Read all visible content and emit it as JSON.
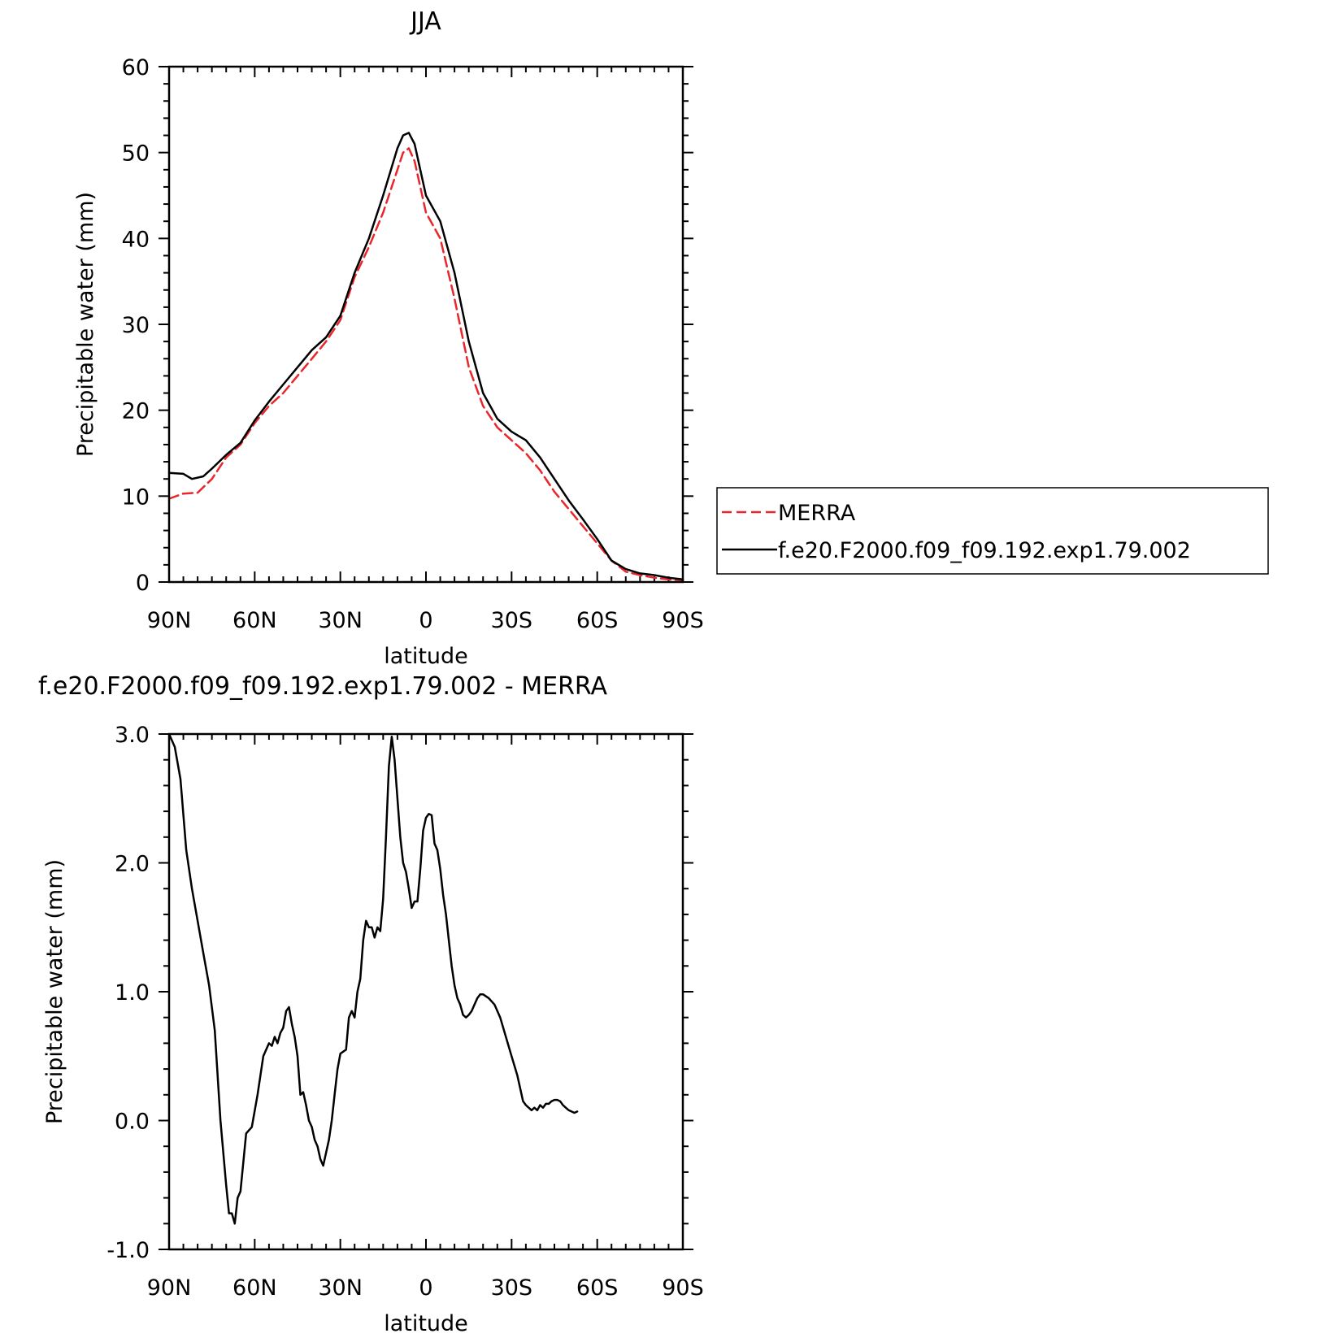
{
  "chart_data": [
    {
      "type": "line",
      "title": "JJA",
      "xlabel": "latitude",
      "ylabel": "Precipitable water (mm)",
      "xlim": [
        90,
        -90
      ],
      "ylim": [
        0,
        60
      ],
      "x_ticks": [
        90,
        60,
        30,
        0,
        -30,
        -60,
        -90
      ],
      "x_tick_labels": [
        "90N",
        "60N",
        "30N",
        "0",
        "30S",
        "60S",
        "90S"
      ],
      "y_ticks": [
        0,
        10,
        20,
        30,
        40,
        50,
        60
      ],
      "y_tick_labels": [
        "0",
        "10",
        "20",
        "30",
        "40",
        "50",
        "60"
      ],
      "grid": false,
      "legend_position": "right",
      "series": [
        {
          "name": "MERRA",
          "color": "#e8262b",
          "dash": "dashed",
          "points": [
            [
              90,
              9.7
            ],
            [
              85,
              10.3
            ],
            [
              80,
              10.4
            ],
            [
              75,
              12
            ],
            [
              70,
              14.5
            ],
            [
              65,
              16
            ],
            [
              60,
              18.5
            ],
            [
              55,
              20.5
            ],
            [
              50,
              22
            ],
            [
              45,
              24
            ],
            [
              40,
              26
            ],
            [
              35,
              28
            ],
            [
              30,
              30.5
            ],
            [
              25,
              35.5
            ],
            [
              20,
              39
            ],
            [
              15,
              43
            ],
            [
              10,
              48
            ],
            [
              8,
              50
            ],
            [
              6,
              50.5
            ],
            [
              4,
              49
            ],
            [
              2,
              46
            ],
            [
              0,
              43
            ],
            [
              -5,
              40
            ],
            [
              -10,
              33
            ],
            [
              -15,
              25
            ],
            [
              -20,
              20.5
            ],
            [
              -25,
              18
            ],
            [
              -30,
              16.5
            ],
            [
              -35,
              15
            ],
            [
              -40,
              13
            ],
            [
              -45,
              10.5
            ],
            [
              -50,
              8.5
            ],
            [
              -55,
              6.5
            ],
            [
              -60,
              4.5
            ],
            [
              -65,
              2.5
            ],
            [
              -70,
              1.2
            ],
            [
              -75,
              0.8
            ],
            [
              -80,
              0.5
            ],
            [
              -85,
              0.3
            ],
            [
              -90,
              0.2
            ]
          ]
        },
        {
          "name": "f.e20.F2000.f09_f09.192.exp1.79.002",
          "color": "#000000",
          "dash": "solid",
          "points": [
            [
              90,
              12.7
            ],
            [
              85,
              12.6
            ],
            [
              82,
              12
            ],
            [
              78,
              12.3
            ],
            [
              75,
              13.2
            ],
            [
              70,
              14.8
            ],
            [
              65,
              16.2
            ],
            [
              60,
              18.8
            ],
            [
              55,
              21
            ],
            [
              50,
              23
            ],
            [
              45,
              25
            ],
            [
              40,
              27
            ],
            [
              35,
              28.5
            ],
            [
              30,
              31
            ],
            [
              25,
              36
            ],
            [
              20,
              40
            ],
            [
              15,
              45
            ],
            [
              10,
              50.5
            ],
            [
              8,
              52
            ],
            [
              6,
              52.3
            ],
            [
              4,
              51
            ],
            [
              2,
              48
            ],
            [
              0,
              45
            ],
            [
              -5,
              42
            ],
            [
              -10,
              36
            ],
            [
              -15,
              28
            ],
            [
              -20,
              22
            ],
            [
              -25,
              19
            ],
            [
              -30,
              17.5
            ],
            [
              -35,
              16.5
            ],
            [
              -40,
              14.5
            ],
            [
              -45,
              12
            ],
            [
              -50,
              9.5
            ],
            [
              -55,
              7.3
            ],
            [
              -60,
              5
            ],
            [
              -65,
              2.5
            ],
            [
              -70,
              1.5
            ],
            [
              -75,
              1
            ],
            [
              -80,
              0.8
            ],
            [
              -85,
              0.5
            ],
            [
              -90,
              0.3
            ]
          ]
        }
      ]
    },
    {
      "type": "line",
      "title": "f.e20.F2000.f09_f09.192.exp1.79.002 - MERRA",
      "xlabel": "latitude",
      "ylabel": "Precipitable water (mm)",
      "xlim": [
        90,
        -90
      ],
      "ylim": [
        -1.0,
        3.0
      ],
      "x_ticks": [
        90,
        60,
        30,
        0,
        -30,
        -60,
        -90
      ],
      "x_tick_labels": [
        "90N",
        "60N",
        "30N",
        "0",
        "30S",
        "60S",
        "90S"
      ],
      "y_ticks": [
        -1.0,
        0.0,
        1.0,
        2.0,
        3.0
      ],
      "y_tick_labels": [
        "-1.0",
        "0.0",
        "1.0",
        "2.0",
        "3.0"
      ],
      "grid": false,
      "series": [
        {
          "name": "",
          "color": "#000000",
          "dash": "solid",
          "points": [
            [
              90,
              3.0
            ],
            [
              88,
              2.9
            ],
            [
              86,
              2.65
            ],
            [
              84,
              2.1
            ],
            [
              82,
              1.8
            ],
            [
              80,
              1.55
            ],
            [
              78,
              1.3
            ],
            [
              76,
              1.05
            ],
            [
              74,
              0.7
            ],
            [
              72,
              0.0
            ],
            [
              70,
              -0.5
            ],
            [
              69,
              -0.72
            ],
            [
              68,
              -0.72
            ],
            [
              67,
              -0.8
            ],
            [
              66,
              -0.6
            ],
            [
              65,
              -0.55
            ],
            [
              63,
              -0.1
            ],
            [
              61,
              -0.05
            ],
            [
              59,
              0.2
            ],
            [
              57,
              0.5
            ],
            [
              55,
              0.6
            ],
            [
              54,
              0.58
            ],
            [
              53,
              0.65
            ],
            [
              52,
              0.6
            ],
            [
              51,
              0.68
            ],
            [
              50,
              0.72
            ],
            [
              49,
              0.85
            ],
            [
              48,
              0.88
            ],
            [
              47,
              0.75
            ],
            [
              46,
              0.65
            ],
            [
              45,
              0.5
            ],
            [
              44,
              0.2
            ],
            [
              43,
              0.22
            ],
            [
              42,
              0.12
            ],
            [
              41,
              0.0
            ],
            [
              40,
              -0.05
            ],
            [
              39,
              -0.15
            ],
            [
              38,
              -0.2
            ],
            [
              37,
              -0.3
            ],
            [
              36,
              -0.35
            ],
            [
              35,
              -0.25
            ],
            [
              34,
              -0.15
            ],
            [
              33,
              0.0
            ],
            [
              32,
              0.2
            ],
            [
              31,
              0.4
            ],
            [
              30,
              0.52
            ],
            [
              28,
              0.55
            ],
            [
              27,
              0.8
            ],
            [
              26,
              0.85
            ],
            [
              25,
              0.8
            ],
            [
              24,
              1.0
            ],
            [
              23,
              1.1
            ],
            [
              22,
              1.4
            ],
            [
              21,
              1.55
            ],
            [
              20,
              1.5
            ],
            [
              19,
              1.5
            ],
            [
              18,
              1.42
            ],
            [
              17,
              1.5
            ],
            [
              16,
              1.47
            ],
            [
              15,
              1.72
            ],
            [
              14,
              2.2
            ],
            [
              13,
              2.75
            ],
            [
              12,
              2.98
            ],
            [
              11,
              2.8
            ],
            [
              10,
              2.5
            ],
            [
              9,
              2.2
            ],
            [
              8,
              2.0
            ],
            [
              7,
              1.93
            ],
            [
              6,
              1.8
            ],
            [
              5,
              1.65
            ],
            [
              4,
              1.7
            ],
            [
              3,
              1.7
            ],
            [
              2,
              1.95
            ],
            [
              1,
              2.25
            ],
            [
              0,
              2.35
            ],
            [
              -1,
              2.38
            ],
            [
              -2,
              2.37
            ],
            [
              -3,
              2.15
            ],
            [
              -4,
              2.1
            ],
            [
              -5,
              1.95
            ],
            [
              -6,
              1.75
            ],
            [
              -7,
              1.6
            ],
            [
              -8,
              1.4
            ],
            [
              -9,
              1.2
            ],
            [
              -10,
              1.05
            ],
            [
              -11,
              0.95
            ],
            [
              -12,
              0.9
            ],
            [
              -13,
              0.82
            ],
            [
              -14,
              0.8
            ],
            [
              -15,
              0.82
            ],
            [
              -16,
              0.85
            ],
            [
              -17,
              0.9
            ],
            [
              -18,
              0.95
            ],
            [
              -19,
              0.98
            ],
            [
              -20,
              0.98
            ],
            [
              -22,
              0.95
            ],
            [
              -24,
              0.9
            ],
            [
              -26,
              0.8
            ],
            [
              -28,
              0.65
            ],
            [
              -30,
              0.5
            ],
            [
              -32,
              0.35
            ],
            [
              -34,
              0.15
            ],
            [
              -35,
              0.12
            ],
            [
              -36,
              0.1
            ],
            [
              -37,
              0.08
            ],
            [
              -38,
              0.1
            ],
            [
              -39,
              0.08
            ],
            [
              -40,
              0.12
            ],
            [
              -41,
              0.1
            ],
            [
              -42,
              0.13
            ],
            [
              -43,
              0.13
            ],
            [
              -44,
              0.15
            ],
            [
              -45,
              0.16
            ],
            [
              -46,
              0.16
            ],
            [
              -47,
              0.15
            ],
            [
              -48,
              0.12
            ],
            [
              -49,
              0.1
            ],
            [
              -50,
              0.08
            ],
            [
              -51,
              0.07
            ],
            [
              -52,
              0.06
            ],
            [
              -53,
              0.07
            ]
          ]
        }
      ]
    }
  ]
}
